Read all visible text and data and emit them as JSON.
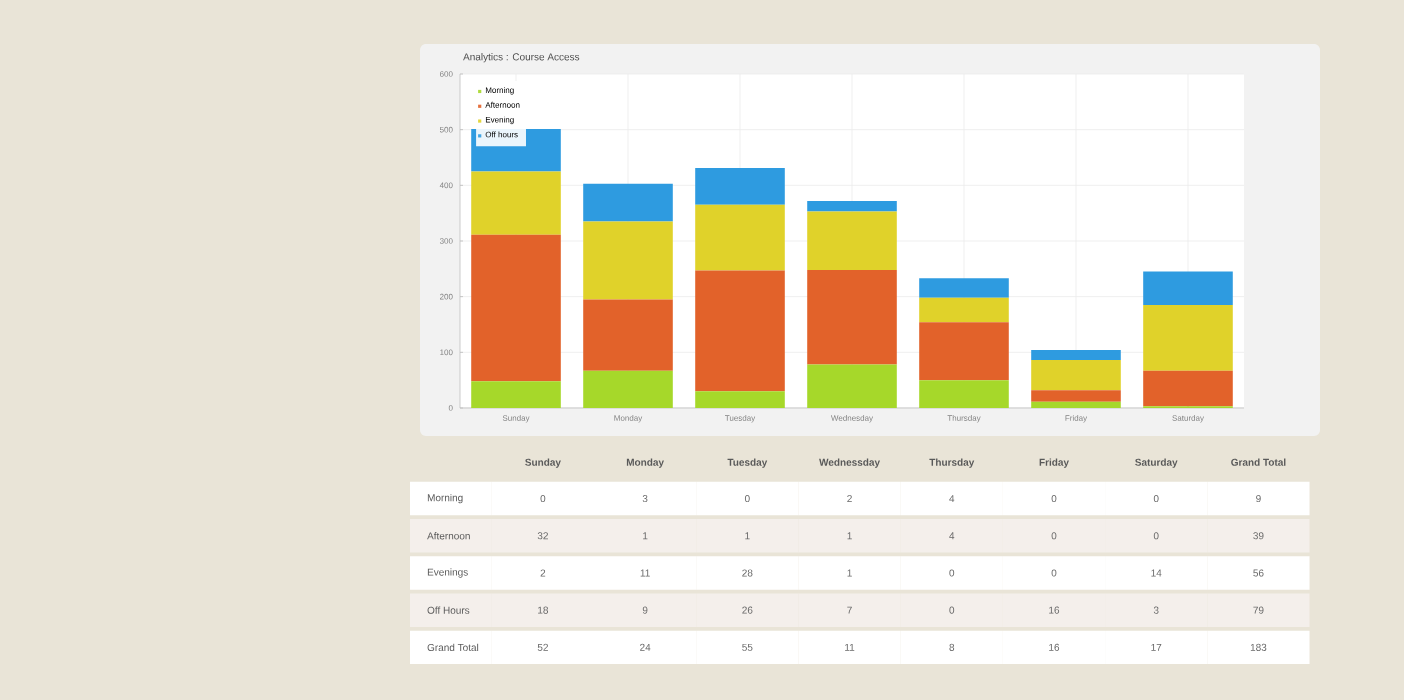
{
  "chart_data": [
    {
      "type": "bar",
      "title": "Analytics : Course Access",
      "stacked": true,
      "categories": [
        "Sunday",
        "Monday",
        "Tuesday",
        "Wednesday",
        "Thursday",
        "Friday",
        "Saturday"
      ],
      "series": [
        {
          "name": "Morning",
          "color": "#a6d82a",
          "values": [
            48,
            67,
            30,
            78,
            50,
            11,
            3
          ]
        },
        {
          "name": "Afternoon",
          "color": "#e2622a",
          "values": [
            263,
            128,
            217,
            170,
            104,
            21,
            64
          ]
        },
        {
          "name": "Evening",
          "color": "#e0d22a",
          "values": [
            114,
            140,
            118,
            105,
            44,
            54,
            118
          ]
        },
        {
          "name": "Off hours",
          "color": "#2e9be0",
          "values": [
            76,
            68,
            66,
            19,
            35,
            18,
            60
          ]
        }
      ],
      "ylim": [
        0,
        600
      ],
      "yticks": [
        0,
        100,
        200,
        300,
        400,
        500,
        600
      ],
      "grid": true,
      "legend": "top left"
    },
    {
      "type": "heatmap",
      "data_labels": true,
      "categories": [
        "Sunday",
        "Monday",
        "Tuesday",
        "Wednessday",
        "Thursday",
        "Friday",
        "Saturday",
        "Grand Total"
      ],
      "y_categories": [
        "Morning",
        "Afternoon",
        "Evenings",
        "Off Hours",
        "Grand Total"
      ],
      "cells": [
        [
          0,
          3,
          0,
          2,
          4,
          0,
          0,
          9
        ],
        [
          32,
          1,
          1,
          1,
          4,
          0,
          0,
          39
        ],
        [
          2,
          11,
          28,
          1,
          0,
          0,
          14,
          56
        ],
        [
          18,
          9,
          26,
          7,
          0,
          16,
          3,
          79
        ],
        [
          52,
          24,
          55,
          11,
          8,
          16,
          17,
          183
        ]
      ]
    }
  ]
}
